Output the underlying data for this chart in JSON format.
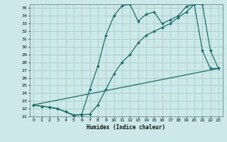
{
  "xlabel": "Humidex (Indice chaleur)",
  "bg_color": "#cce8e8",
  "grid_color": "#aacccc",
  "line_color": "#1a6e6e",
  "xlim": [
    -0.5,
    23.5
  ],
  "ylim": [
    21,
    35.5
  ],
  "xtick_labels": [
    "0",
    "1",
    "2",
    "3",
    "4",
    "5",
    "6",
    "7",
    "8",
    "9",
    "10",
    "11",
    "12",
    "13",
    "14",
    "15",
    "16",
    "17",
    "18",
    "19",
    "20",
    "21",
    "22",
    "23"
  ],
  "ytick_labels": [
    "21",
    "22",
    "23",
    "24",
    "25",
    "26",
    "27",
    "28",
    "29",
    "30",
    "31",
    "32",
    "33",
    "34",
    "35"
  ],
  "curve1_x": [
    0,
    1,
    2,
    3,
    4,
    5,
    6,
    7,
    8,
    9,
    10,
    11,
    12,
    13,
    14,
    15,
    16,
    17,
    18,
    19,
    20,
    21,
    22,
    23
  ],
  "curve1_y": [
    22.5,
    22.3,
    22.2,
    22.0,
    21.6,
    21.2,
    21.2,
    21.3,
    22.5,
    24.5,
    26.5,
    28.0,
    29.0,
    30.5,
    31.5,
    32.0,
    32.5,
    33.0,
    33.8,
    34.5,
    35.5,
    35.5,
    29.5,
    27.2
  ],
  "curve2_x": [
    0,
    1,
    2,
    3,
    4,
    5,
    6,
    7,
    8,
    9,
    10,
    11,
    12,
    13,
    14,
    15,
    16,
    17,
    18,
    19,
    20,
    21,
    22,
    23
  ],
  "curve2_y": [
    22.5,
    22.3,
    22.2,
    22.0,
    21.6,
    21.1,
    21.3,
    24.5,
    27.5,
    31.5,
    34.0,
    35.3,
    35.5,
    33.3,
    34.2,
    34.5,
    33.0,
    33.5,
    34.0,
    35.2,
    35.5,
    29.5,
    27.2,
    27.2
  ],
  "curve3_x": [
    0,
    23
  ],
  "curve3_y": [
    22.5,
    27.2
  ]
}
